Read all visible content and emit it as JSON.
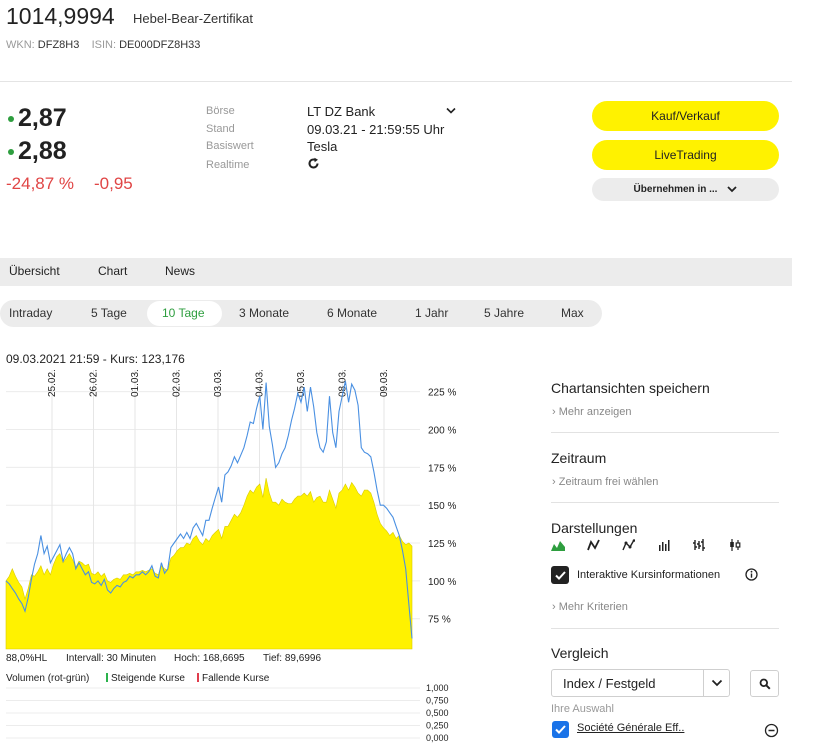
{
  "header": {
    "price": "1014,9994",
    "product_type": "Hebel-Bear-Zertifikat",
    "wkn_label": "WKN:",
    "wkn": "DFZ8H3",
    "isin_label": "ISIN:",
    "isin": "DE000DFZ8H33"
  },
  "quote": {
    "bid": "2,87",
    "ask": "2,88",
    "change_pct": "-24,87 %",
    "change_abs": "-0,95"
  },
  "info": {
    "exchange_label": "Börse",
    "exchange_value": "LT DZ Bank",
    "time_label": "Stand",
    "time_value": "09.03.21 - 21:59:55 Uhr",
    "underlying_label": "Basiswert",
    "underlying_value": "Tesla",
    "realtime_label": "Realtime"
  },
  "actions": {
    "buy_sell": "Kauf/Verkauf",
    "live_trading": "LiveTrading",
    "adopt": "Übernehmen in ..."
  },
  "tabs": [
    "Übersicht",
    "Chart",
    "News"
  ],
  "ranges": {
    "intraday": "Intraday",
    "d5": "5 Tage",
    "d10": "10 Tage",
    "m3": "3 Monate",
    "m6": "6 Monate",
    "y1": "1 Jahr",
    "y5": "5 Jahre",
    "max": "Max",
    "active": "10 Tage"
  },
  "chart_data": {
    "type": "area",
    "header": "09.03.2021 21:59  -  Kurs: 123,176",
    "x_tick_labels": [
      "25.02.",
      "26.02.",
      "01.03.",
      "02.03.",
      "03.03.",
      "04.03.",
      "05.03.",
      "08.03.",
      "09.03."
    ],
    "y_tick_labels": [
      "75 %",
      "100 %",
      "125 %",
      "150 %",
      "175 %",
      "200 %",
      "225 %"
    ],
    "ylim": [
      55,
      238
    ],
    "series": [
      {
        "color": "#fff200",
        "values": [
          100,
          103,
          108,
          103,
          99,
          96,
          88,
          95,
          104,
          103,
          106,
          110,
          104,
          108,
          104,
          111,
          116,
          118,
          112,
          115,
          118,
          114,
          109,
          113,
          112,
          110,
          111,
          105,
          104,
          106,
          103,
          105,
          100,
          99,
          101,
          102,
          101,
          104,
          104,
          105,
          104,
          106,
          106,
          107,
          106,
          107,
          108,
          105,
          104,
          110,
          108,
          107,
          115,
          117,
          120,
          122,
          122,
          125,
          124,
          128,
          130,
          126,
          124,
          128,
          126,
          130,
          132,
          134,
          128,
          136,
          136,
          140,
          144,
          142,
          145,
          150,
          156,
          160,
          158,
          162,
          164,
          155,
          168,
          158,
          152,
          152,
          150,
          154,
          152,
          151,
          151,
          154,
          156,
          156,
          158,
          156,
          159,
          152,
          155,
          156,
          152,
          152,
          160,
          154,
          148,
          158,
          160,
          164,
          160,
          165,
          162,
          158,
          156,
          160,
          160,
          158,
          152,
          144,
          138,
          135,
          133,
          130,
          132,
          128,
          130,
          126,
          124,
          125,
          123
        ]
      },
      {
        "color": "#4a90e2",
        "values": [
          100,
          98,
          95,
          92,
          88,
          85,
          80,
          89,
          101,
          111,
          118,
          130,
          118,
          123,
          112,
          116,
          120,
          124,
          113,
          118,
          122,
          118,
          108,
          112,
          108,
          104,
          106,
          99,
          98,
          100,
          97,
          101,
          94,
          92,
          95,
          97,
          96,
          99,
          100,
          103,
          102,
          104,
          104,
          106,
          104,
          106,
          110,
          103,
          102,
          112,
          105,
          108,
          122,
          125,
          128,
          131,
          128,
          132,
          128,
          135,
          138,
          134,
          130,
          140,
          140,
          148,
          155,
          162,
          152,
          170,
          172,
          176,
          182,
          178,
          183,
          188,
          196,
          205,
          204,
          214,
          222,
          200,
          231,
          202,
          190,
          175,
          178,
          184,
          188,
          196,
          206,
          214,
          224,
          218,
          228,
          212,
          228,
          215,
          198,
          188,
          185,
          192,
          222,
          198,
          188,
          212,
          222,
          232,
          218,
          230,
          226,
          216,
          188,
          185,
          184,
          182,
          172,
          160,
          150,
          150,
          148,
          145,
          142,
          136,
          130,
          120,
          108,
          85,
          62
        ]
      }
    ],
    "stats": {
      "hl": "88,0%HL",
      "interval": "Intervall: 30 Minuten",
      "high": "Hoch: 168,6695",
      "low": "Tief: 89,6996"
    },
    "volume": {
      "title": "Volumen (rot-grün)",
      "rising": "Steigende Kurse",
      "falling": "Fallende Kurse",
      "y_tick_labels": [
        "1,000",
        "0,750",
        "0,500",
        "0,250",
        "0,000"
      ]
    },
    "colors": {
      "area": "#fff200",
      "line": "#4a90e2",
      "rising": "#2bb24c",
      "falling": "#e03c4c"
    }
  },
  "side": {
    "save_title": "Chartansichten speichern",
    "save_link": "Mehr anzeigen",
    "period_title": "Zeitraum",
    "period_link": "Zeitraum frei wählen",
    "display_title": "Darstellungen",
    "display_icons": [
      "mountain-chart",
      "line-chart",
      "line-dots-chart",
      "bar-chart",
      "ohlc-chart",
      "candlestick-chart"
    ],
    "interactive_label": "Interaktive Kursinformationen",
    "more_criteria": "Mehr Kriterien",
    "compare_title": "Vergleich",
    "compare_select": "Index / Festgeld",
    "your_choice": "Ihre Auswahl",
    "compare_item": "Société Générale Eff.."
  }
}
